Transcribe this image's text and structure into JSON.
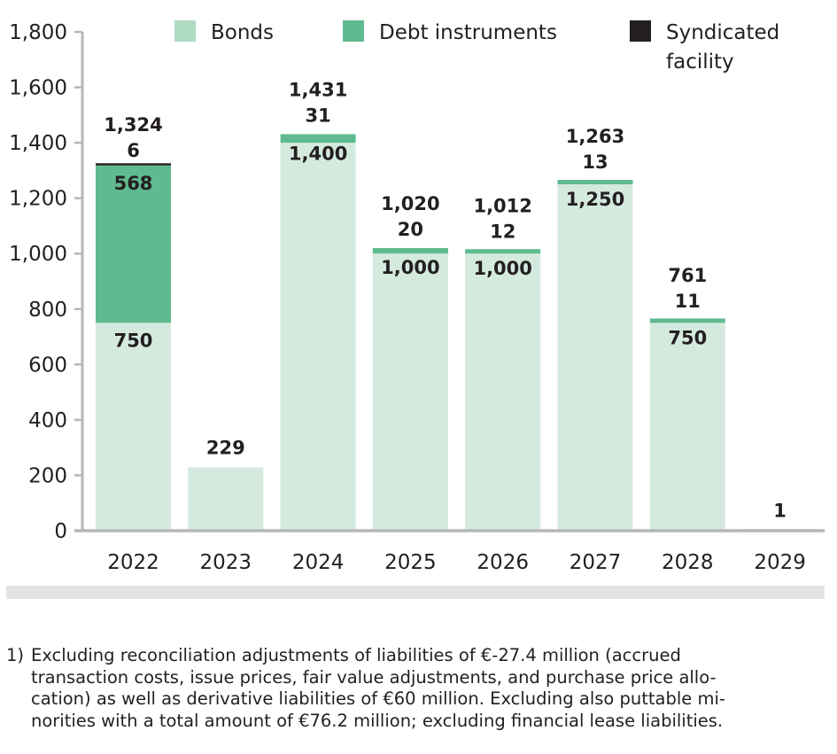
{
  "chart_data": {
    "type": "bar",
    "stacked": true,
    "title": "",
    "xlabel": "",
    "ylabel": "",
    "ylim": [
      0,
      1800
    ],
    "yticks": [
      0,
      200,
      400,
      600,
      800,
      1000,
      1200,
      1400,
      1600,
      1800
    ],
    "ytick_labels": [
      "0",
      "200",
      "400",
      "600",
      "800",
      "1,000",
      "1,200",
      "1,400",
      "1,600",
      "1,800"
    ],
    "grid": false,
    "legend_position": "top",
    "categories": [
      "2022",
      "2023",
      "2024",
      "2025",
      "2026",
      "2027",
      "2028",
      "2029"
    ],
    "series": [
      {
        "name": "Bonds",
        "color": "#d5eadf",
        "legend_color": "#b0dbc3",
        "values": [
          750,
          229,
          1400,
          1000,
          1000,
          1250,
          750,
          1
        ],
        "labels": [
          "750",
          "",
          "1,400",
          "1,000",
          "1,000",
          "1,250",
          "750",
          ""
        ]
      },
      {
        "name": "Debt instruments",
        "color": "#5fbb8f",
        "legend_color": "#5fbb8f",
        "values": [
          568,
          0,
          31,
          20,
          12,
          13,
          11,
          0
        ],
        "labels": [
          "568",
          "",
          "31",
          "20",
          "12",
          "13",
          "11",
          ""
        ]
      },
      {
        "name": "Syndicated facility",
        "color": "#231f20",
        "legend_color": "#231f20",
        "values": [
          6,
          0,
          0,
          0,
          0,
          0,
          0,
          0
        ],
        "labels": [
          "6",
          "",
          "",
          "",
          "",
          "",
          "",
          ""
        ]
      }
    ],
    "legend_labels": [
      [
        "Bonds"
      ],
      [
        "Debt instruments"
      ],
      [
        "Syndicated",
        "facility"
      ]
    ],
    "totals": [
      "1,324",
      "229",
      "1,431",
      "1,020",
      "1,012",
      "1,263",
      "761",
      "1"
    ]
  },
  "footnote": {
    "mark": "1)",
    "lines": [
      "Excluding reconciliation adjustments of liabilities of €-27.4 million (accrued",
      "transaction costs, issue prices, fair value adjustments, and purchase price allo-",
      "cation) as well as derivative liabilities of €60 million. Excluding also puttable mi-",
      "norities with a total amount of €76.2 million; excluding financial lease liabilities."
    ]
  }
}
